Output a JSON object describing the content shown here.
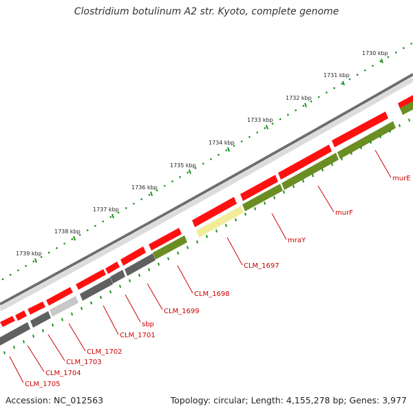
{
  "title": "Clostridium botulinum A2 str. Kyoto, complete genome",
  "footer": {
    "accession": "Accession: NC_012563",
    "summary": "Topology: circular; Length: 4,155,278 bp; Genes: 3,977"
  },
  "colors": {
    "forward_gene": "#ff1010",
    "reverse_gene_green": "#6b8e23",
    "reverse_gene_gray": "#606060",
    "reverse_gene_lightgray": "#c8c8c8",
    "reverse_gene_yellow": "#f2ec9a",
    "label": "#cc0000",
    "tick": "#1a8f1a"
  },
  "ticks": [
    "1730 kbp",
    "1731 kbp",
    "1732 kbp",
    "1733 kbp",
    "1734 kbp",
    "1735 kbp",
    "1736 kbp",
    "1737 kbp",
    "1738 kbp",
    "1739 kbp"
  ],
  "gene_labels": [
    "murE",
    "murF",
    "mraY",
    "CLM_1697",
    "CLM_1698",
    "CLM_1699",
    "sbp",
    "CLM_1701",
    "CLM_1702",
    "CLM_1703",
    "CLM_1704",
    "CLM_1705"
  ]
}
